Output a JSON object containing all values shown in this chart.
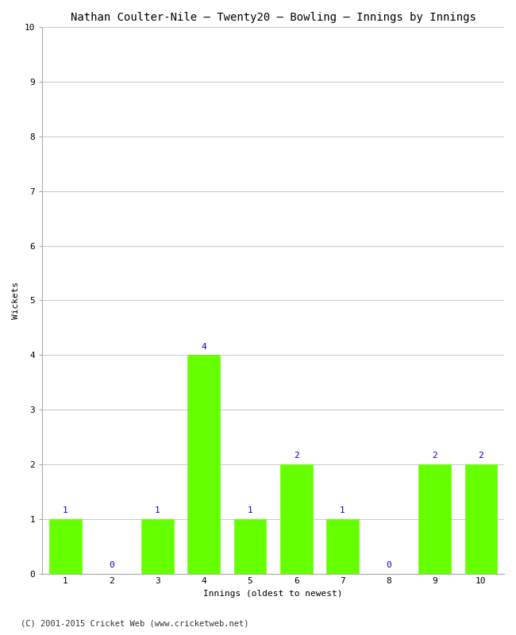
{
  "title": "Nathan Coulter-Nile – Twenty20 – Bowling – Innings by Innings",
  "xlabel": "Innings (oldest to newest)",
  "ylabel": "Wickets",
  "innings": [
    1,
    2,
    3,
    4,
    5,
    6,
    7,
    8,
    9,
    10
  ],
  "wickets": [
    1,
    0,
    1,
    4,
    1,
    2,
    1,
    0,
    2,
    2
  ],
  "bar_color": "#66ff00",
  "bar_edge_color": "#66ff00",
  "ylim": [
    0,
    10
  ],
  "yticks": [
    0,
    1,
    2,
    3,
    4,
    5,
    6,
    7,
    8,
    9,
    10
  ],
  "label_color": "#0000cc",
  "background_color": "#ffffff",
  "plot_bg_color": "#ffffff",
  "grid_color": "#cccccc",
  "title_fontsize": 10,
  "axis_label_fontsize": 8,
  "tick_fontsize": 8,
  "annotation_fontsize": 8,
  "footer": "(C) 2001-2015 Cricket Web (www.cricketweb.net)"
}
